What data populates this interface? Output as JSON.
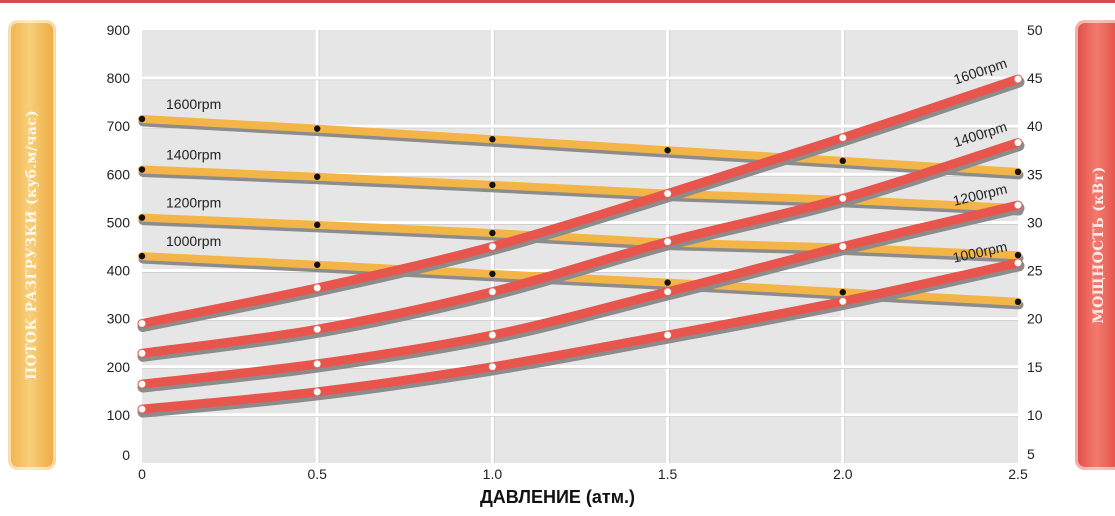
{
  "chart_data": {
    "type": "line",
    "xlabel": "ДАВЛЕНИЕ (атм.)",
    "ylabel_left": "ПОТОК РАЗГРУЗКИ (куб.м/час)",
    "ylabel_right": "МОЩНОСТЬ (кВт)",
    "x_ticks": [
      "0",
      "0.5",
      "1.0",
      "1.5",
      "2.0",
      "2.5"
    ],
    "y_left_ticks": [
      "0",
      "100",
      "200",
      "300",
      "400",
      "500",
      "600",
      "700",
      "800",
      "900"
    ],
    "y_right_ticks": [
      "5",
      "10",
      "15",
      "20",
      "25",
      "30",
      "35",
      "40",
      "45",
      "50"
    ],
    "xlim": [
      0,
      2.5
    ],
    "ylim_left": [
      0,
      900
    ],
    "ylim_right": [
      5,
      50
    ],
    "grid": true,
    "series": [
      {
        "name": "1600rpm",
        "axis": "left",
        "label_pos": "left",
        "color": "#f4b548",
        "x": [
          0,
          0.5,
          1.0,
          1.5,
          2.0,
          2.5
        ],
        "values": [
          715,
          695,
          673,
          650,
          628,
          605
        ]
      },
      {
        "name": "1400rpm",
        "axis": "left",
        "label_pos": "left",
        "color": "#f4b548",
        "x": [
          0,
          0.5,
          1.0,
          1.5,
          2.0,
          2.5
        ],
        "values": [
          610,
          595,
          578,
          560,
          547,
          530
        ]
      },
      {
        "name": "1200rpm",
        "axis": "left",
        "label_pos": "left",
        "color": "#f4b548",
        "x": [
          0,
          0.5,
          1.0,
          1.5,
          2.0,
          2.5
        ],
        "values": [
          510,
          495,
          478,
          458,
          448,
          432
        ]
      },
      {
        "name": "1000rpm",
        "axis": "left",
        "label_pos": "left",
        "color": "#f4b548",
        "x": [
          0,
          0.5,
          1.0,
          1.5,
          2.0,
          2.5
        ],
        "values": [
          430,
          412,
          393,
          375,
          355,
          335
        ]
      },
      {
        "name": "1600rpm",
        "axis": "right",
        "label_pos": "right",
        "color": "#e8554c",
        "x": [
          0,
          0.5,
          1.0,
          1.5,
          2.0,
          2.5
        ],
        "values": [
          19.5,
          23.2,
          27.5,
          33.0,
          38.8,
          44.9
        ]
      },
      {
        "name": "1400rpm",
        "axis": "right",
        "label_pos": "right",
        "color": "#e8554c",
        "x": [
          0,
          0.5,
          1.0,
          1.5,
          2.0,
          2.5
        ],
        "values": [
          16.4,
          18.9,
          22.8,
          28.0,
          32.5,
          38.3
        ]
      },
      {
        "name": "1200rpm",
        "axis": "right",
        "label_pos": "right",
        "color": "#e8554c",
        "x": [
          0,
          0.5,
          1.0,
          1.5,
          2.0,
          2.5
        ],
        "values": [
          13.2,
          15.3,
          18.3,
          22.8,
          27.5,
          31.8
        ]
      },
      {
        "name": "1000rpm",
        "axis": "right",
        "label_pos": "right",
        "color": "#e8554c",
        "x": [
          0,
          0.5,
          1.0,
          1.5,
          2.0,
          2.5
        ],
        "values": [
          10.6,
          12.4,
          15.0,
          18.3,
          21.8,
          25.8
        ]
      }
    ]
  }
}
